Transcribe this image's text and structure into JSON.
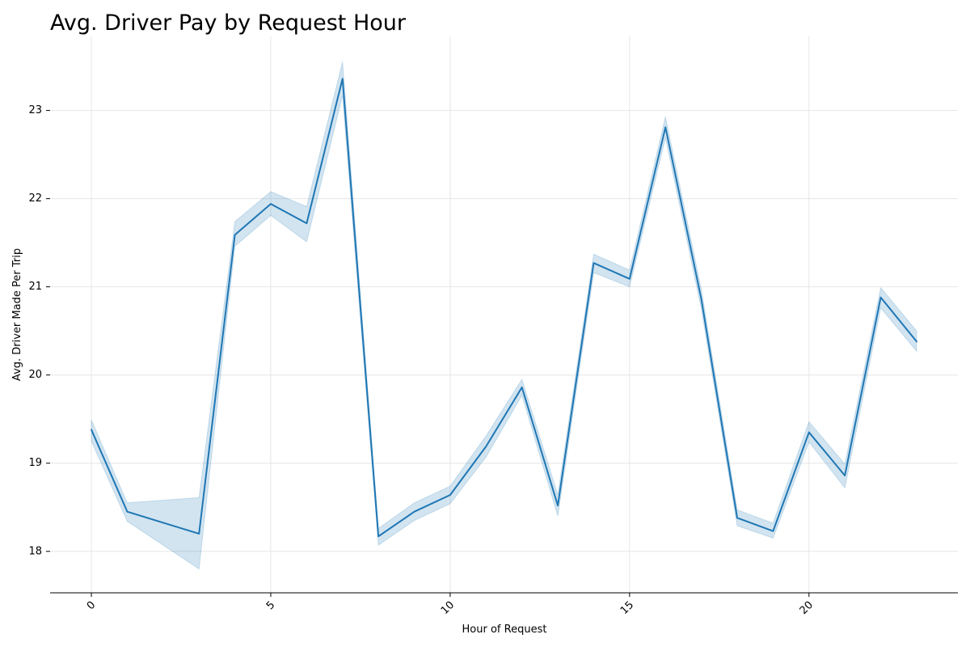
{
  "chart_data": {
    "type": "line",
    "title": "Avg. Driver Pay by Request Hour",
    "xlabel": "Hour of Request",
    "ylabel": "Avg. Driver Made Per Trip",
    "xlim": [
      -1.15,
      24.15
    ],
    "ylim": [
      17.53,
      23.84
    ],
    "xticks": [
      0,
      5,
      10,
      15,
      20
    ],
    "yticks": [
      18,
      19,
      20,
      21,
      22,
      23
    ],
    "grid": true,
    "line_color": "#1f77b4",
    "band_color": "#1f77b4",
    "series": [
      {
        "x": [
          0,
          1,
          3,
          4,
          5,
          6,
          7,
          8,
          9,
          10,
          11,
          12,
          13,
          14,
          15,
          16,
          17,
          18,
          19,
          20,
          21,
          22,
          23
        ],
        "y": [
          19.38,
          18.45,
          18.2,
          21.59,
          21.94,
          21.72,
          23.36,
          18.17,
          18.45,
          18.64,
          19.19,
          19.86,
          18.52,
          21.27,
          21.09,
          22.81,
          20.86,
          18.38,
          18.23,
          19.35,
          18.86,
          20.88,
          20.38
        ],
        "ci_lower": [
          19.25,
          18.34,
          17.8,
          21.46,
          21.81,
          21.51,
          23.17,
          18.07,
          18.35,
          18.54,
          19.07,
          19.77,
          18.4,
          21.16,
          21.0,
          22.69,
          20.75,
          18.29,
          18.15,
          19.24,
          18.72,
          20.76,
          20.27
        ],
        "ci_upper": [
          19.49,
          18.55,
          18.61,
          21.74,
          22.08,
          21.91,
          23.55,
          18.26,
          18.55,
          18.74,
          19.31,
          19.95,
          18.64,
          21.37,
          21.19,
          22.93,
          20.97,
          18.47,
          18.32,
          19.47,
          18.99,
          20.99,
          20.5
        ]
      }
    ]
  }
}
